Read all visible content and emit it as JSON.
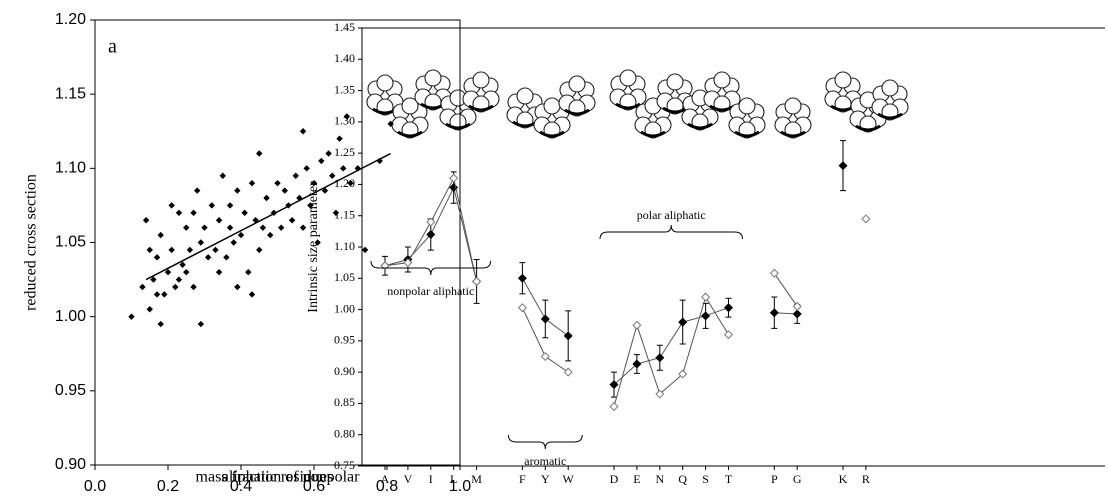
{
  "chart_data": [
    {
      "type": "scatter",
      "panel_label": "a",
      "xlabel": [
        "mass fraction of nonpolar",
        "aliphatic residues"
      ],
      "ylabel": "reduced cross section",
      "x": [
        0.1,
        0.13,
        0.14,
        0.15,
        0.15,
        0.16,
        0.17,
        0.17,
        0.18,
        0.18,
        0.19,
        0.2,
        0.21,
        0.21,
        0.22,
        0.23,
        0.23,
        0.24,
        0.25,
        0.25,
        0.26,
        0.27,
        0.27,
        0.28,
        0.29,
        0.29,
        0.3,
        0.31,
        0.32,
        0.33,
        0.34,
        0.34,
        0.35,
        0.36,
        0.37,
        0.37,
        0.38,
        0.39,
        0.39,
        0.4,
        0.41,
        0.42,
        0.43,
        0.43,
        0.44,
        0.45,
        0.45,
        0.46,
        0.47,
        0.48,
        0.49,
        0.5,
        0.51,
        0.52,
        0.53,
        0.54,
        0.55,
        0.56,
        0.57,
        0.57,
        0.58,
        0.59,
        0.6,
        0.61,
        0.62,
        0.63,
        0.64,
        0.65,
        0.66,
        0.67,
        0.68,
        0.69,
        0.7,
        0.72,
        0.74,
        0.78,
        0.81
      ],
      "values": [
        1.0,
        1.02,
        1.065,
        1.005,
        1.045,
        1.025,
        1.015,
        1.04,
        0.995,
        1.055,
        1.015,
        1.03,
        1.075,
        1.045,
        1.02,
        1.07,
        1.025,
        1.035,
        1.06,
        1.03,
        1.045,
        1.07,
        1.02,
        1.085,
        0.995,
        1.05,
        1.06,
        1.04,
        1.075,
        1.045,
        1.03,
        1.065,
        1.095,
        1.04,
        1.06,
        1.075,
        1.05,
        1.02,
        1.085,
        1.055,
        1.07,
        1.03,
        1.015,
        1.09,
        1.065,
        1.11,
        1.045,
        1.06,
        1.08,
        1.055,
        1.07,
        1.09,
        1.06,
        1.085,
        1.075,
        1.065,
        1.095,
        1.08,
        1.125,
        1.06,
        1.1,
        1.075,
        1.09,
        1.05,
        1.105,
        1.085,
        1.11,
        1.095,
        1.07,
        1.12,
        1.1,
        1.135,
        1.09,
        1.1,
        1.045,
        1.105,
        1.13
      ],
      "color": "#000000",
      "trend_line": {
        "x": [
          0.14,
          0.81
        ],
        "values": [
          1.025,
          1.11
        ]
      },
      "xlim": [
        0,
        1
      ],
      "xticks": [
        {
          "value": 0,
          "label": "0.0"
        },
        0.2,
        0.4,
        0.6,
        0.8,
        {
          "value": 1,
          "label": "1.0"
        }
      ],
      "ylim": [
        0.9,
        1.2
      ],
      "yticks": [
        {
          "value": 0.9,
          "label": "0.90"
        },
        0.95,
        {
          "value": 1.0,
          "label": "1.00"
        },
        1.05,
        {
          "value": 1.1,
          "label": "1.10"
        },
        1.15,
        {
          "value": 1.2,
          "label": "1.20"
        }
      ]
    },
    {
      "type": "line",
      "ylabel": "Intrinsic size parameter",
      "categories": [
        "A",
        "V",
        "I",
        "L",
        "M",
        null,
        "F",
        "Y",
        "W",
        null,
        "D",
        "E",
        "N",
        "Q",
        "S",
        "T",
        null,
        "P",
        "G",
        null,
        "K",
        "R"
      ],
      "series": [
        {
          "color": "#000000",
          "marker": "filled",
          "values": [
            1.07,
            1.08,
            1.12,
            1.195,
            1.045,
            null,
            1.05,
            0.985,
            0.958,
            null,
            0.88,
            0.913,
            0.923,
            0.98,
            0.99,
            1.003,
            null,
            0.995,
            0.993,
            null,
            1.23,
            null
          ],
          "errors": [
            0.015,
            0.02,
            0.025,
            0.025,
            0.035,
            null,
            0.025,
            0.03,
            0.04,
            null,
            0.02,
            0.015,
            0.02,
            0.035,
            0.02,
            0.015,
            null,
            0.025,
            0.015,
            null,
            0.04,
            null
          ]
        },
        {
          "color": "#777777",
          "marker": "open",
          "values": [
            1.07,
            1.075,
            1.14,
            1.21,
            1.045,
            null,
            1.003,
            0.925,
            0.9,
            null,
            0.845,
            0.975,
            0.865,
            0.897,
            1.02,
            0.96,
            null,
            1.058,
            1.005,
            null,
            null,
            1.145
          ]
        }
      ],
      "annotations": [
        "nonpolar aliphatic",
        "aromatic",
        "polar aliphatic"
      ],
      "ylim": [
        0.75,
        1.45
      ],
      "yticks": [
        0.75,
        {
          "value": 0.8,
          "label": "0.80"
        },
        0.85,
        {
          "value": 0.9,
          "label": "0.90"
        },
        0.95,
        {
          "value": 1.0,
          "label": "1.00"
        },
        1.05,
        {
          "value": 1.1,
          "label": "1.10"
        },
        1.15,
        {
          "value": 1.2,
          "label": "1.20"
        },
        1.25,
        {
          "value": 1.3,
          "label": "1.30"
        },
        1.35,
        {
          "value": 1.4,
          "label": "1.40"
        },
        1.45
      ]
    }
  ]
}
